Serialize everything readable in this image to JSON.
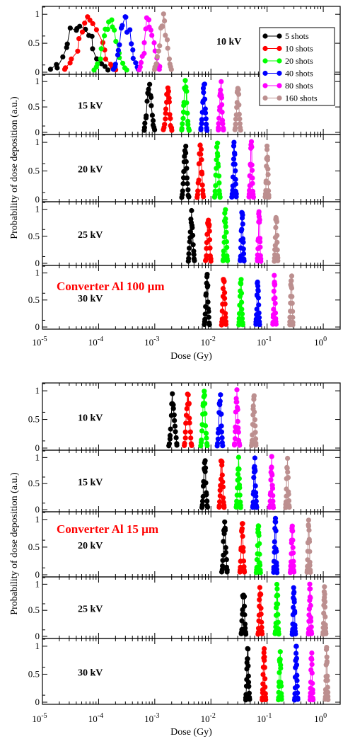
{
  "chart_data": [
    {
      "type": "line",
      "annotation": "Converter Al 100 µm",
      "xlabel": "Dose (Gy)",
      "ylabel": "Probability of dose deposition (a.u.)",
      "xscale": "log",
      "xlim": [
        1e-05,
        2
      ],
      "ylim": [
        0,
        1.1
      ],
      "x_tick_labels": [
        "10",
        "10",
        "10",
        "10",
        "10",
        "10"
      ],
      "x_tick_exponents": [
        "-5",
        "-4",
        "-3",
        "-2",
        "-1",
        "0"
      ],
      "y_tick_labels": [
        "0",
        "0.5",
        "1"
      ],
      "series_names": [
        "5 shots",
        "10 shots",
        "20 shots",
        "40 shots",
        "80 shots",
        "160 shots"
      ],
      "colors": [
        "#000000",
        "#ff0000",
        "#00ff00",
        "#0000ff",
        "#ff00ff",
        "#bc8f8f"
      ],
      "legend_position": "top-right of top panel",
      "panels": [
        {
          "label": "10 kV",
          "peaks": [
            4.5e-05,
            7e-05,
            0.00016,
            0.0003,
            0.0008,
            0.0014
          ],
          "widths": [
            0.3,
            0.3,
            0.18,
            0.14,
            0.12,
            0.1
          ]
        },
        {
          "label": "15 kV",
          "peaks": [
            0.0008,
            0.0017,
            0.0035,
            0.0075,
            0.015,
            0.03
          ],
          "widths": [
            0.06,
            0.045,
            0.04,
            0.035,
            0.03,
            0.03
          ]
        },
        {
          "label": "20 kV",
          "peaks": [
            0.0035,
            0.0065,
            0.013,
            0.026,
            0.052,
            0.1
          ],
          "widths": [
            0.04,
            0.035,
            0.03,
            0.025,
            0.025,
            0.02
          ]
        },
        {
          "label": "25 kV",
          "peaks": [
            0.0045,
            0.009,
            0.018,
            0.036,
            0.072,
            0.145
          ],
          "widths": [
            0.035,
            0.03,
            0.025,
            0.022,
            0.02,
            0.02
          ]
        },
        {
          "label": "30 kV",
          "peaks": [
            0.0085,
            0.017,
            0.034,
            0.068,
            0.135,
            0.27
          ],
          "widths": [
            0.028,
            0.025,
            0.022,
            0.02,
            0.018,
            0.018
          ]
        }
      ]
    },
    {
      "type": "line",
      "annotation": "Converter Al 15 µm",
      "xlabel": "Dose (Gy)",
      "ylabel": "Probability of dose deposition (a.u.)",
      "xscale": "log",
      "xlim": [
        1e-05,
        2
      ],
      "ylim": [
        0,
        1.1
      ],
      "x_tick_labels": [
        "10",
        "10",
        "10",
        "10",
        "10",
        "10"
      ],
      "x_tick_exponents": [
        "-5",
        "-4",
        "-3",
        "-2",
        "-1",
        "0"
      ],
      "y_tick_labels": [
        "0",
        "0.5",
        "1"
      ],
      "series_names": [
        "5 shots",
        "10 shots",
        "20 shots",
        "40 shots",
        "80 shots",
        "160 shots"
      ],
      "colors": [
        "#000000",
        "#ff0000",
        "#00ff00",
        "#0000ff",
        "#ff00ff",
        "#bc8f8f"
      ],
      "panels": [
        {
          "label": "10 kV",
          "peaks": [
            0.0021,
            0.0039,
            0.0075,
            0.0145,
            0.029,
            0.058
          ],
          "widths": [
            0.045,
            0.04,
            0.035,
            0.03,
            0.028,
            0.025
          ]
        },
        {
          "label": "15 kV",
          "peaks": [
            0.0078,
            0.0155,
            0.031,
            0.06,
            0.12,
            0.23
          ],
          "widths": [
            0.03,
            0.028,
            0.025,
            0.022,
            0.02,
            0.02
          ]
        },
        {
          "label": "20 kV",
          "peaks": [
            0.0175,
            0.036,
            0.07,
            0.14,
            0.28,
            0.55
          ],
          "widths": [
            0.03,
            0.025,
            0.022,
            0.02,
            0.02,
            0.018
          ]
        },
        {
          "label": "25 kV",
          "peaks": [
            0.038,
            0.075,
            0.15,
            0.3,
            0.58,
            1.05
          ],
          "widths": [
            0.025,
            0.022,
            0.02,
            0.018,
            0.018,
            0.016
          ]
        },
        {
          "label": "30 kV",
          "peaks": [
            0.045,
            0.088,
            0.17,
            0.33,
            0.62,
            1.15
          ],
          "widths": [
            0.022,
            0.02,
            0.018,
            0.018,
            0.016,
            0.016
          ]
        }
      ]
    }
  ]
}
